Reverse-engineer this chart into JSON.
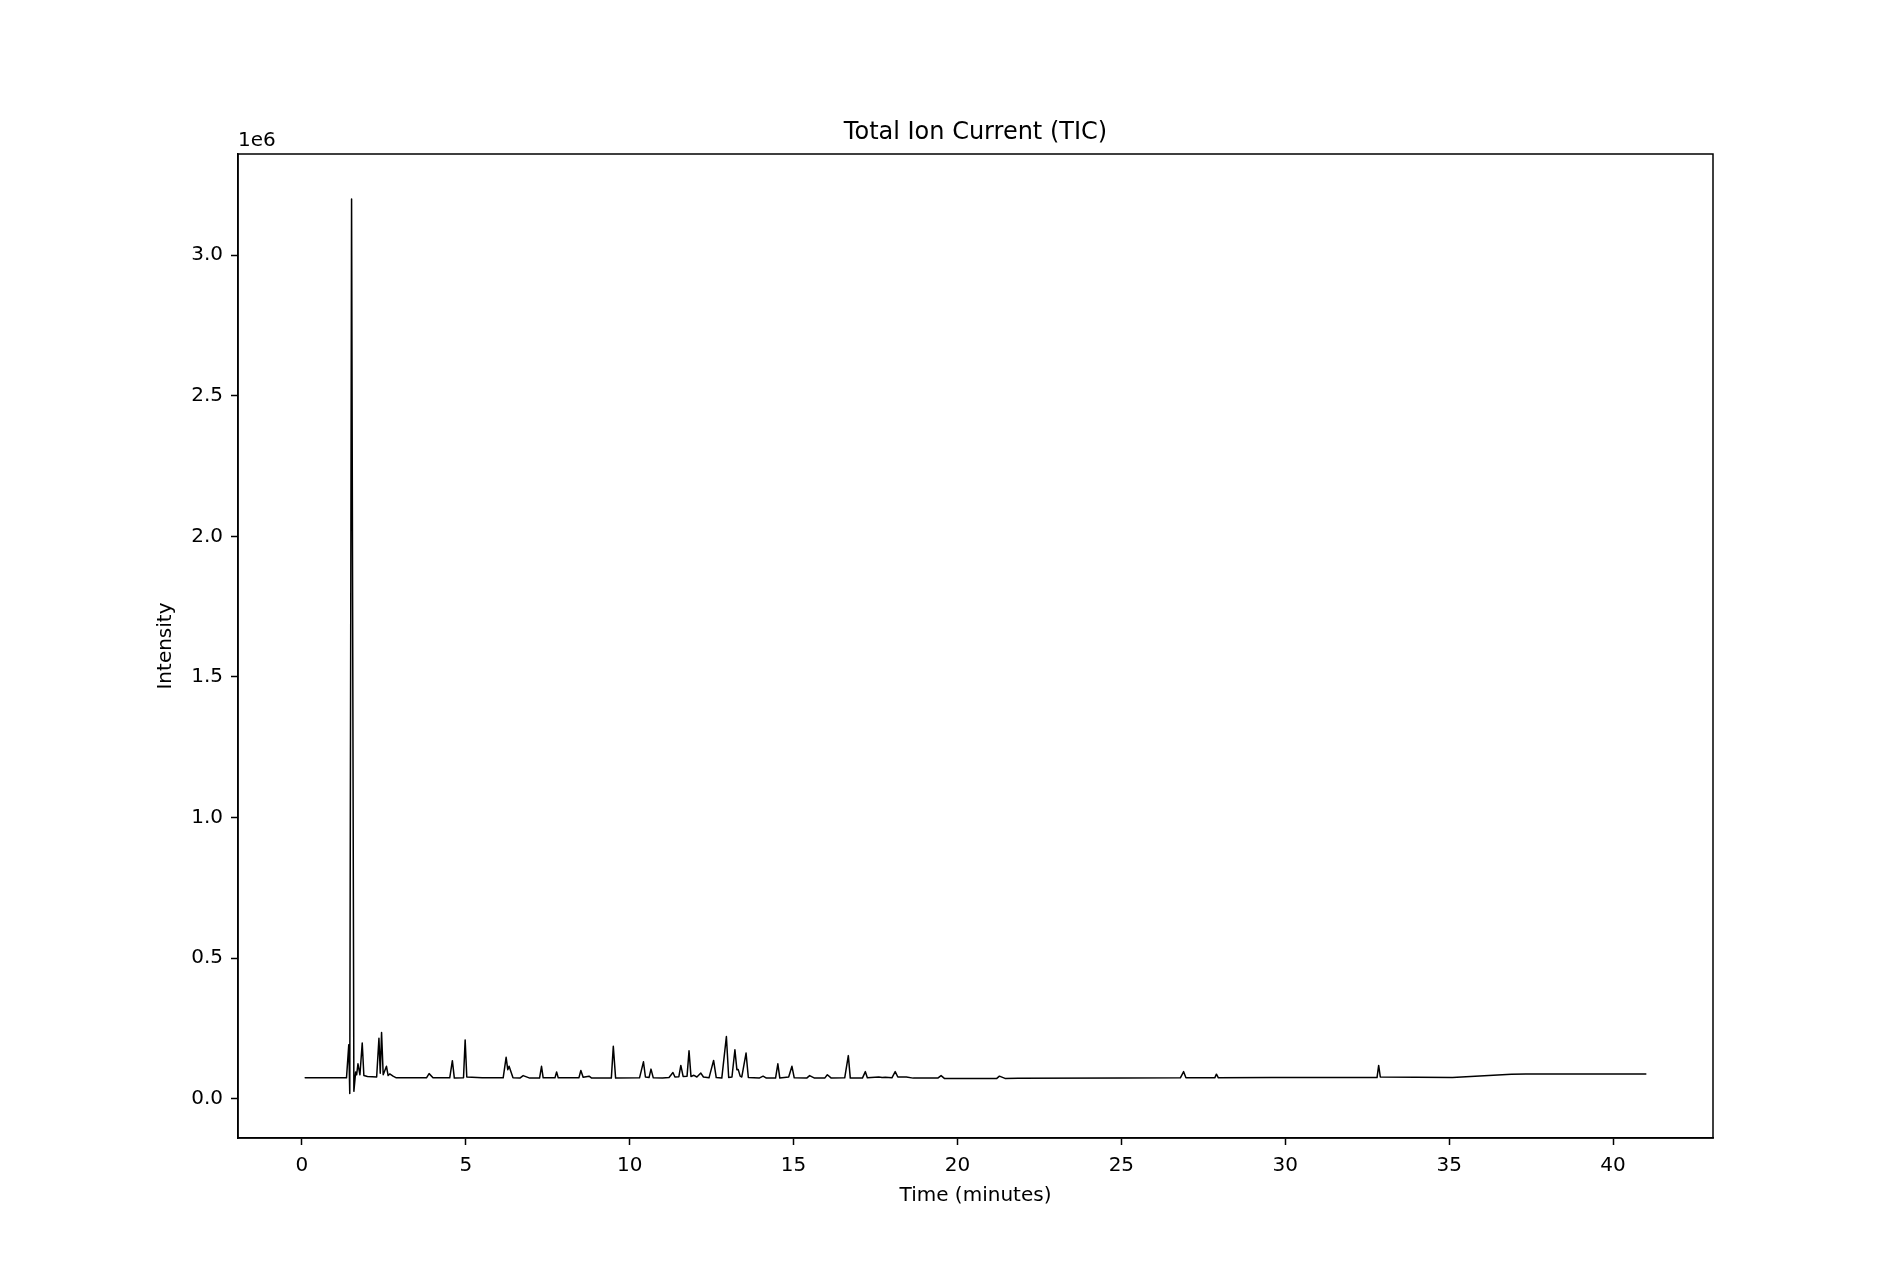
{
  "chart_data": {
    "type": "line",
    "title": "Total Ion Current (TIC)",
    "xlabel": "Time (minutes)",
    "ylabel": "Intensity",
    "color": "#000000",
    "x": [
      0.1,
      1.36,
      1.43,
      1.46,
      1.515,
      1.585,
      1.64,
      1.67,
      1.71,
      1.77,
      1.84,
      1.89,
      2.0,
      2.28,
      2.35,
      2.39,
      2.43,
      2.48,
      2.58,
      2.63,
      2.68,
      2.78,
      2.88,
      3.8,
      3.88,
      4.0,
      4.51,
      4.59,
      4.65,
      4.93,
      4.98,
      5.03,
      5.5,
      6.14,
      6.23,
      6.28,
      6.32,
      6.44,
      6.65,
      6.75,
      6.95,
      7.25,
      7.31,
      7.36,
      7.72,
      7.77,
      7.82,
      8.45,
      8.51,
      8.58,
      8.76,
      8.84,
      9.44,
      9.5,
      9.57,
      10.3,
      10.42,
      10.48,
      10.59,
      10.65,
      10.72,
      11.0,
      11.2,
      11.32,
      11.38,
      11.5,
      11.56,
      11.63,
      11.75,
      11.81,
      11.87,
      11.96,
      12.05,
      12.17,
      12.25,
      12.42,
      12.56,
      12.64,
      12.81,
      12.95,
      13.02,
      13.12,
      13.21,
      13.27,
      13.31,
      13.37,
      13.42,
      13.55,
      13.62,
      13.95,
      14.07,
      14.17,
      14.45,
      14.52,
      14.58,
      14.85,
      14.95,
      15.02,
      15.4,
      15.49,
      15.64,
      15.95,
      16.03,
      16.15,
      16.56,
      16.67,
      16.73,
      17.1,
      17.19,
      17.25,
      17.6,
      17.7,
      17.8,
      18.0,
      18.1,
      18.18,
      18.44,
      18.65,
      19.4,
      19.5,
      19.6,
      21.2,
      21.28,
      21.45,
      25.0,
      26.8,
      26.9,
      26.97,
      27.85,
      27.9,
      27.96,
      30.0,
      32.8,
      32.85,
      32.9,
      35.1,
      36.9,
      38.6,
      41.0
    ],
    "values": [
      0.074,
      0.074,
      0.192,
      0.018,
      3.2,
      0.026,
      0.095,
      0.085,
      0.124,
      0.085,
      0.198,
      0.082,
      0.079,
      0.077,
      0.215,
      0.09,
      0.235,
      0.085,
      0.115,
      0.082,
      0.088,
      0.08,
      0.074,
      0.074,
      0.089,
      0.074,
      0.074,
      0.135,
      0.073,
      0.074,
      0.209,
      0.077,
      0.074,
      0.074,
      0.147,
      0.103,
      0.115,
      0.074,
      0.073,
      0.082,
      0.073,
      0.073,
      0.115,
      0.074,
      0.074,
      0.095,
      0.074,
      0.074,
      0.1,
      0.076,
      0.08,
      0.073,
      0.073,
      0.186,
      0.073,
      0.074,
      0.131,
      0.077,
      0.075,
      0.105,
      0.074,
      0.073,
      0.075,
      0.093,
      0.077,
      0.078,
      0.118,
      0.079,
      0.08,
      0.17,
      0.079,
      0.083,
      0.077,
      0.091,
      0.077,
      0.074,
      0.136,
      0.075,
      0.073,
      0.221,
      0.075,
      0.077,
      0.174,
      0.103,
      0.104,
      0.08,
      0.077,
      0.162,
      0.075,
      0.073,
      0.08,
      0.073,
      0.073,
      0.124,
      0.073,
      0.077,
      0.115,
      0.074,
      0.073,
      0.082,
      0.073,
      0.073,
      0.085,
      0.073,
      0.074,
      0.153,
      0.073,
      0.073,
      0.096,
      0.074,
      0.077,
      0.075,
      0.076,
      0.074,
      0.096,
      0.077,
      0.077,
      0.073,
      0.073,
      0.082,
      0.072,
      0.072,
      0.08,
      0.072,
      0.073,
      0.074,
      0.096,
      0.074,
      0.074,
      0.087,
      0.074,
      0.075,
      0.075,
      0.118,
      0.077,
      0.075,
      0.087,
      0.088,
      0.088
    ],
    "xlim": [
      -1.95,
      43.05
    ],
    "xticks": [
      0,
      5,
      10,
      15,
      20,
      25,
      30,
      35,
      40
    ],
    "ylim": [
      -0.14,
      3.36
    ],
    "yticks": [
      {
        "value": 0,
        "label": "0.0"
      },
      0.5,
      {
        "value": 1,
        "label": "1.0"
      },
      1.5,
      {
        "value": 2,
        "label": "2.0"
      },
      2.5,
      {
        "value": 3,
        "label": "3.0"
      }
    ],
    "annotations": [
      "1e6"
    ]
  }
}
